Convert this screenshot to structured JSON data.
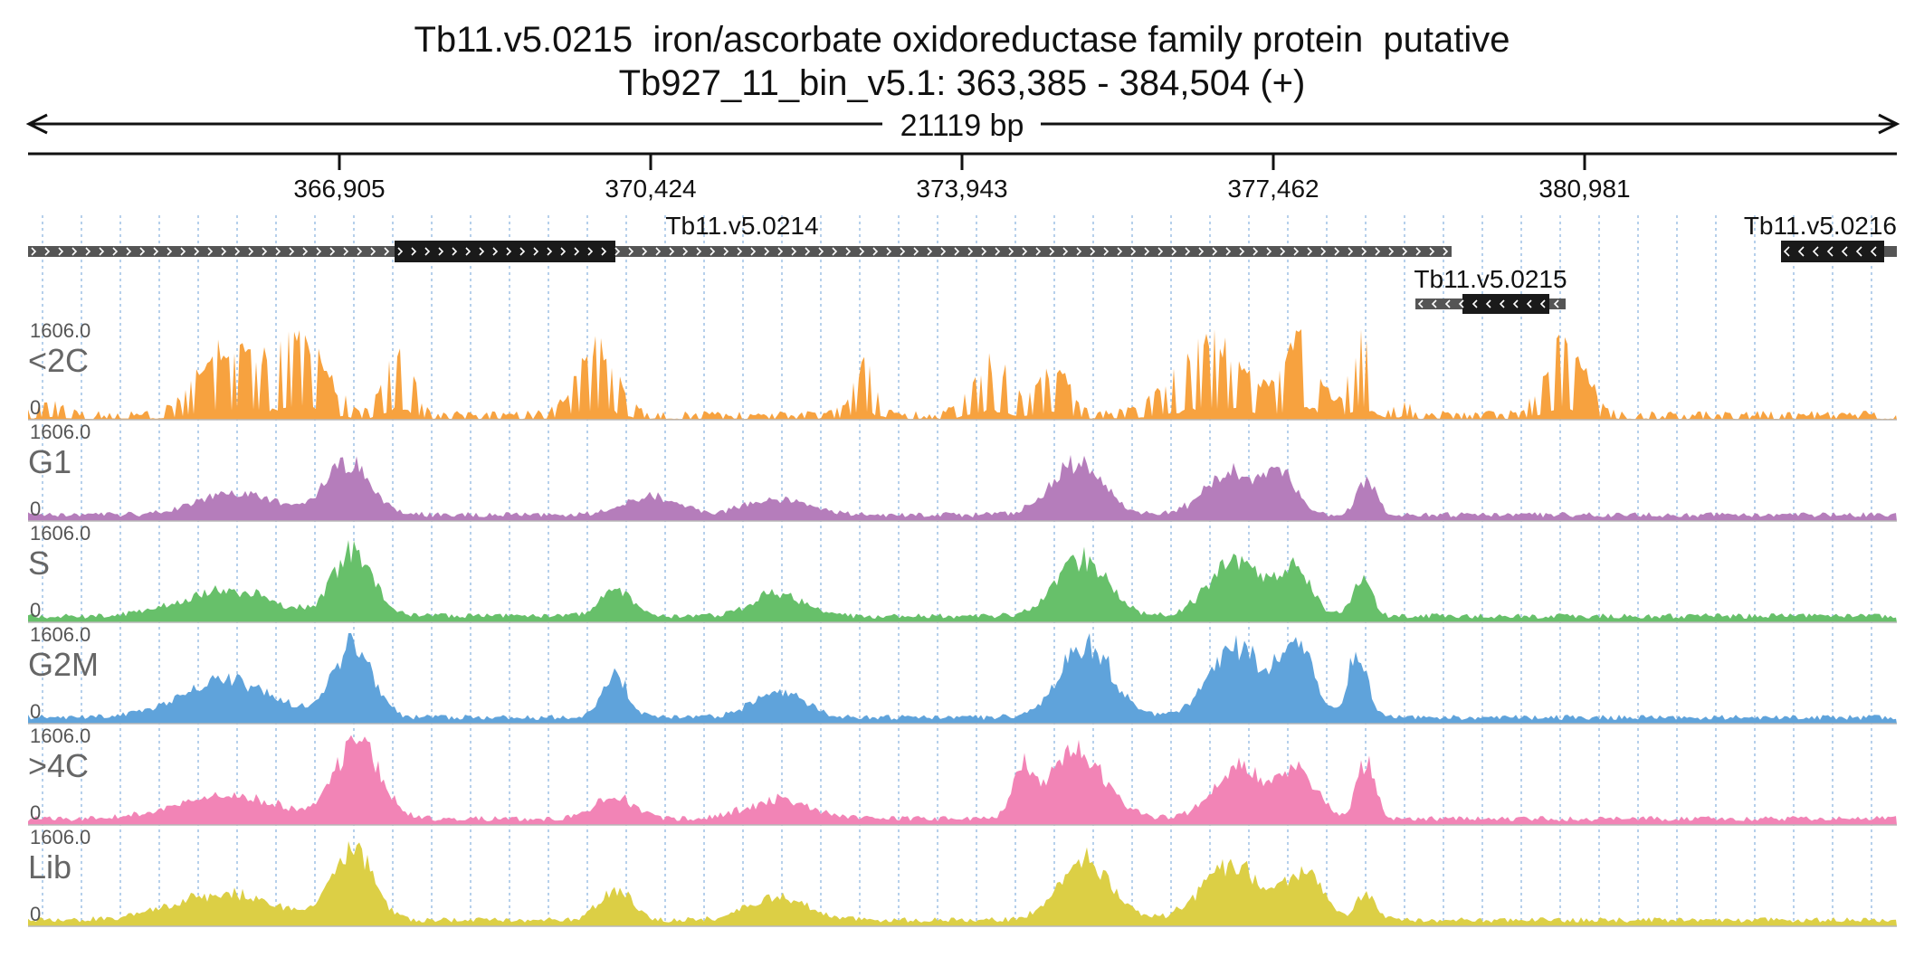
{
  "title": {
    "line1": "Tb11.v5.0215  iron/ascorbate oxidoreductase family protein  putative",
    "line2": "Tb927_11_bin_v5.1: 363,385 - 384,504 (+)"
  },
  "scale": {
    "span_label": "21119 bp",
    "ticks": [
      "366,905",
      "370,424",
      "373,943",
      "377,462",
      "380,981"
    ]
  },
  "genes": [
    {
      "name": "Tb11.v5.0214",
      "strand": "+"
    },
    {
      "name": "Tb11.v5.0215",
      "strand": "-"
    },
    {
      "name": "Tb11.v5.0216",
      "strand": "-"
    }
  ],
  "tracks": [
    {
      "name": "<2C",
      "max": "1606.0",
      "min": "0",
      "color": "#f7a23f",
      "seed": 11
    },
    {
      "name": "G1",
      "max": "1606.0",
      "min": "0",
      "color": "#b57dbb",
      "seed": 23
    },
    {
      "name": "S",
      "max": "1606.0",
      "min": "0",
      "color": "#67c06a",
      "seed": 37
    },
    {
      "name": "G2M",
      "max": "1606.0",
      "min": "0",
      "color": "#5fa3db",
      "seed": 41
    },
    {
      "name": ">4C",
      "max": "1606.0",
      "min": "0",
      "color": "#f284b6",
      "seed": 53
    },
    {
      "name": "Lib",
      "max": "1606.0",
      "min": "0",
      "color": "#dccf45",
      "seed": 67
    }
  ],
  "colors": {
    "gene_body": "#555555",
    "gene_cds": "#1a1a1a",
    "gridline": "#8fb6e0",
    "clip_marker": "#e06030"
  }
}
